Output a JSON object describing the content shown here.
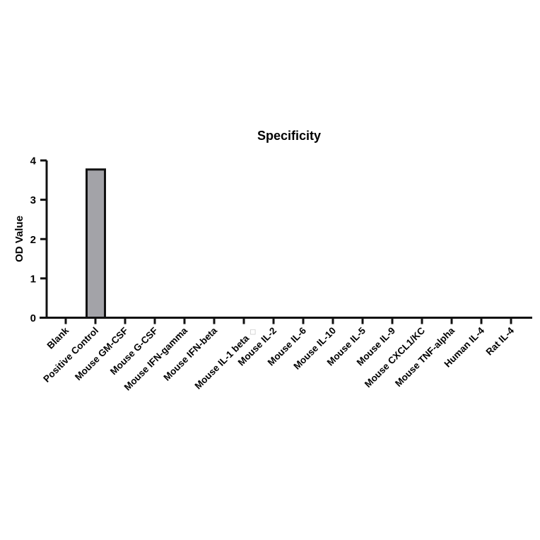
{
  "chart_data": {
    "type": "bar",
    "title": "Specificity",
    "xlabel": "",
    "ylabel": "OD Value",
    "ylim": [
      0,
      4
    ],
    "yticks": [
      0,
      1,
      2,
      3,
      4
    ],
    "grid": false,
    "legend": null,
    "categories": [
      "Blank",
      "Positive Control",
      "Mouse GM-CSF",
      "Mouse G-CSF",
      "Mouse IFN-gamma",
      "Mouse IFN-beta",
      "Mouse IL-1 beta",
      "Mouse IL-2",
      "Mouse IL-6",
      "Mouse IL-10",
      "Mouse IL-5",
      "Mouse IL-9",
      "Mouse CXCL1/KC",
      "Mouse TNF-alpha",
      "Human IL-4",
      "Rat IL-4"
    ],
    "values": [
      0,
      3.77,
      0,
      0,
      0,
      0,
      0,
      0,
      0,
      0,
      0,
      0,
      0,
      0,
      0,
      0
    ],
    "annotations": [
      {
        "category": "Mouse IL-1 beta",
        "glyph": "◇",
        "color": "#c8c8c8"
      }
    ],
    "colors": {
      "bar_fill": "#a3a3a8",
      "bar_stroke": "#111111",
      "axis": "#111111"
    }
  }
}
